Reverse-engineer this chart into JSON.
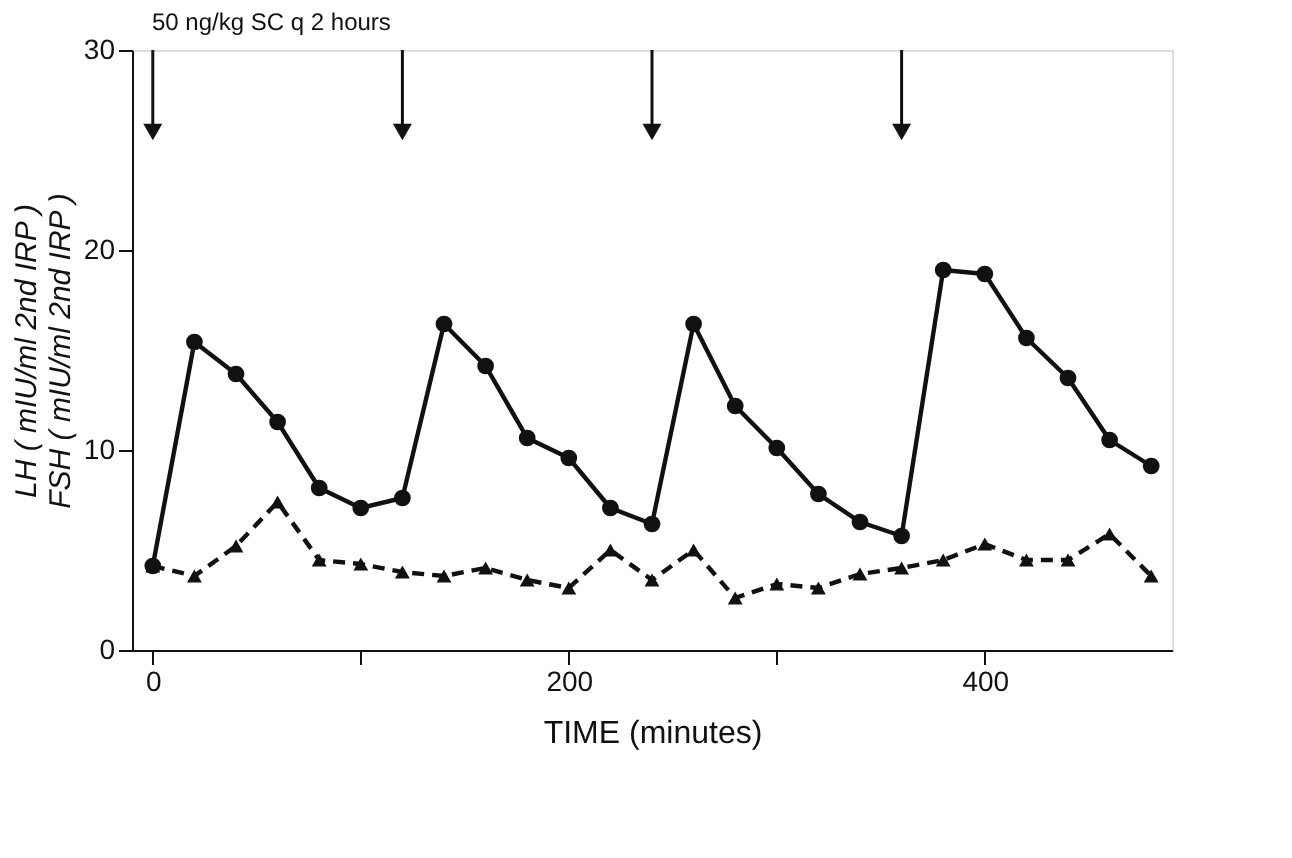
{
  "chart_data": {
    "type": "line",
    "xlabel": "TIME (minutes)",
    "ylabel": "LH ( mIU/ml 2nd IRP )\nFSH ( mIU/ml 2nd IRP )",
    "x": [
      0,
      20,
      40,
      60,
      80,
      100,
      120,
      140,
      160,
      180,
      200,
      220,
      240,
      260,
      280,
      300,
      320,
      340,
      360,
      380,
      400,
      420,
      440,
      460,
      480
    ],
    "series": [
      {
        "color": "#111111",
        "marker": "circle",
        "line_style": "solid",
        "values": [
          4.2,
          15.4,
          13.8,
          11.4,
          8.1,
          7.1,
          7.6,
          16.3,
          14.2,
          10.6,
          9.6,
          7.1,
          6.3,
          16.3,
          12.2,
          10.1,
          7.8,
          6.4,
          5.7,
          19.0,
          18.8,
          15.6,
          13.6,
          10.5,
          9.2
        ]
      },
      {
        "color": "#111111",
        "marker": "triangle",
        "line_style": "dashed",
        "values": [
          4.2,
          3.7,
          5.2,
          7.4,
          4.5,
          4.3,
          3.9,
          3.7,
          4.1,
          3.5,
          3.1,
          5.0,
          3.5,
          5.0,
          2.6,
          3.3,
          3.1,
          3.8,
          4.1,
          4.5,
          5.3,
          4.5,
          4.5,
          5.8,
          3.7
        ]
      }
    ],
    "xlim": [
      -10,
      490
    ],
    "xticks": [
      0,
      {
        "value": 100,
        "label": null
      },
      200,
      {
        "value": 300,
        "label": null
      },
      400
    ],
    "ylim": [
      0,
      30
    ],
    "yticks": [
      0,
      10,
      20,
      30
    ],
    "grid": false,
    "ref_lines": [
      {
        "axis": "x",
        "value": 0,
        "label": null
      },
      {
        "axis": "x",
        "value": 120,
        "label": null
      },
      {
        "axis": "x",
        "value": 240,
        "label": null
      },
      {
        "axis": "x",
        "value": 360,
        "label": null
      }
    ],
    "annotations": [
      "50 ng/kg  SC q 2 hours"
    ]
  }
}
